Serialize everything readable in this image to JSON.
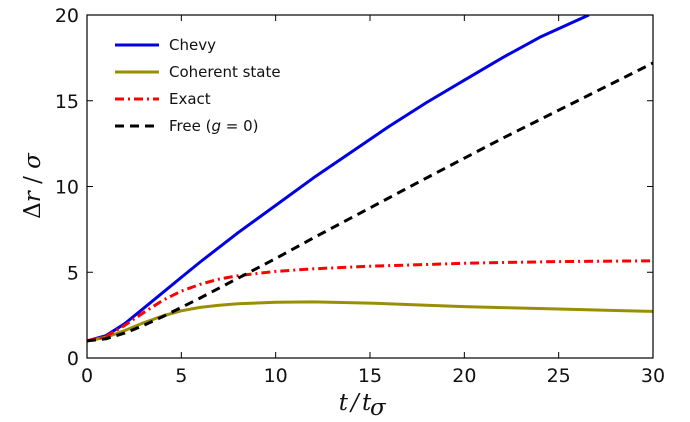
{
  "chart_data": {
    "type": "line",
    "xlabel": "t / t_σ",
    "ylabel": "Δr / σ",
    "xlim": [
      0,
      30
    ],
    "ylim": [
      0,
      20
    ],
    "xticks": [
      "0",
      "5",
      "10",
      "15",
      "20",
      "25",
      "30"
    ],
    "yticks": [
      "0",
      "5",
      "10",
      "15",
      "20"
    ],
    "grid": false,
    "legend_position": "top-left",
    "series": [
      {
        "name": "Chevy",
        "color": "#0000e0",
        "style": "solid",
        "x": [
          0,
          1,
          2,
          3,
          4,
          5,
          6,
          8,
          10,
          12,
          14,
          16,
          18,
          20,
          22,
          24,
          26,
          26.6
        ],
        "y": [
          1.0,
          1.3,
          2.0,
          2.9,
          3.8,
          4.7,
          5.6,
          7.3,
          8.9,
          10.5,
          12.0,
          13.5,
          14.9,
          16.2,
          17.5,
          18.7,
          19.7,
          20.0
        ]
      },
      {
        "name": "Coherent state",
        "color": "#9a8f00",
        "style": "solid",
        "x": [
          0,
          1,
          2,
          3,
          4,
          5,
          6,
          7,
          8,
          10,
          12,
          15,
          18,
          20,
          22,
          25,
          28,
          30
        ],
        "y": [
          1.0,
          1.2,
          1.6,
          2.05,
          2.45,
          2.75,
          2.95,
          3.08,
          3.16,
          3.25,
          3.27,
          3.2,
          3.08,
          3.0,
          2.94,
          2.86,
          2.77,
          2.72
        ]
      },
      {
        "name": "Exact",
        "color": "#ff0000",
        "style": "dashdot",
        "x": [
          0,
          1,
          2,
          3,
          4,
          5,
          6,
          7,
          8,
          10,
          12,
          15,
          18,
          20,
          22,
          25,
          28,
          30
        ],
        "y": [
          1.0,
          1.25,
          1.9,
          2.65,
          3.35,
          3.9,
          4.3,
          4.6,
          4.8,
          5.05,
          5.2,
          5.35,
          5.45,
          5.52,
          5.57,
          5.62,
          5.65,
          5.67
        ]
      },
      {
        "name": "Free (g = 0)",
        "color": "#000000",
        "style": "dashed",
        "x": [
          0,
          1,
          2,
          3,
          4,
          5,
          6,
          8,
          10,
          12,
          15,
          18,
          20,
          22,
          25,
          28,
          30
        ],
        "y": [
          1.0,
          1.12,
          1.45,
          1.9,
          2.4,
          2.95,
          3.5,
          4.65,
          5.8,
          7.0,
          8.75,
          10.5,
          11.65,
          12.8,
          14.45,
          16.1,
          17.2
        ]
      }
    ]
  }
}
